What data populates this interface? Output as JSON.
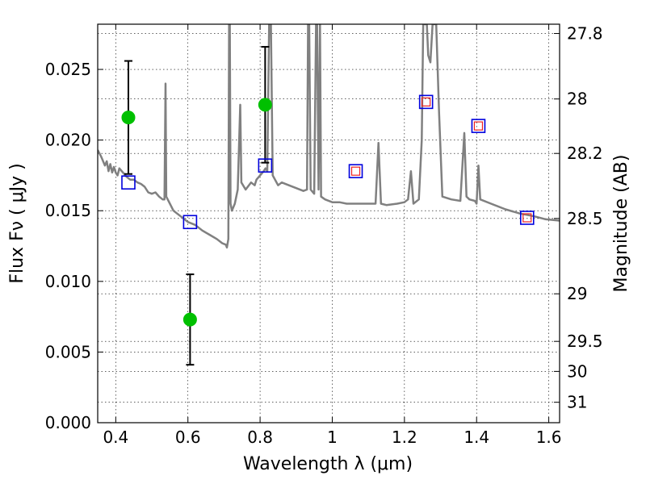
{
  "chart_data": {
    "type": "scatter",
    "xlabel": "Wavelength  λ (μm)",
    "ylabel": "Flux  Fν  ( μJy )",
    "y2label": "Magnitude (AB)",
    "xlim": [
      0.35,
      1.63
    ],
    "ylim": [
      0.0,
      0.0282
    ],
    "x_ticks": [
      {
        "value": 0.4,
        "label": "0.4"
      },
      {
        "value": 0.6,
        "label": "0.6"
      },
      {
        "value": 0.8,
        "label": "0.8"
      },
      {
        "value": 1.0,
        "label": "1"
      },
      {
        "value": 1.2,
        "label": "1.2"
      },
      {
        "value": 1.4,
        "label": "1.4"
      },
      {
        "value": 1.6,
        "label": "1.6"
      }
    ],
    "y_ticks": [
      {
        "value": 0.0,
        "label": "0.000"
      },
      {
        "value": 0.005,
        "label": "0.005"
      },
      {
        "value": 0.01,
        "label": "0.010"
      },
      {
        "value": 0.015,
        "label": "0.015"
      },
      {
        "value": 0.02,
        "label": "0.020"
      },
      {
        "value": 0.025,
        "label": "0.025"
      }
    ],
    "y2_ticks": [
      {
        "mag": 27.8,
        "label": "27.8"
      },
      {
        "mag": 28.0,
        "label": "28"
      },
      {
        "mag": 28.2,
        "label": "28.2"
      },
      {
        "mag": 28.5,
        "label": "28.5"
      },
      {
        "mag": 29.0,
        "label": "29"
      },
      {
        "mag": 29.5,
        "label": "29.5"
      },
      {
        "mag": 30.0,
        "label": "30"
      },
      {
        "mag": 31.0,
        "label": "31"
      }
    ],
    "grid": true,
    "colors": {
      "model": "#808080",
      "observed": "#00c000",
      "model_phot_outer": "#0000dd",
      "model_phot_inner": "#ee2222",
      "errorbar": "#000000"
    },
    "model_spectrum": [
      [
        0.35,
        0.0193
      ],
      [
        0.36,
        0.0188
      ],
      [
        0.37,
        0.0182
      ],
      [
        0.375,
        0.0185
      ],
      [
        0.38,
        0.0178
      ],
      [
        0.385,
        0.0183
      ],
      [
        0.39,
        0.0177
      ],
      [
        0.395,
        0.0181
      ],
      [
        0.4,
        0.0177
      ],
      [
        0.405,
        0.0175
      ],
      [
        0.41,
        0.018
      ],
      [
        0.42,
        0.0177
      ],
      [
        0.43,
        0.0174
      ],
      [
        0.44,
        0.0172
      ],
      [
        0.45,
        0.0172
      ],
      [
        0.46,
        0.017
      ],
      [
        0.47,
        0.0169
      ],
      [
        0.48,
        0.0167
      ],
      [
        0.49,
        0.0163
      ],
      [
        0.5,
        0.0162
      ],
      [
        0.51,
        0.0163
      ],
      [
        0.52,
        0.016
      ],
      [
        0.53,
        0.0158
      ],
      [
        0.535,
        0.0158
      ],
      [
        0.538,
        0.024
      ],
      [
        0.54,
        0.016
      ],
      [
        0.55,
        0.0155
      ],
      [
        0.56,
        0.015
      ],
      [
        0.58,
        0.0146
      ],
      [
        0.6,
        0.0142
      ],
      [
        0.62,
        0.014
      ],
      [
        0.64,
        0.0136
      ],
      [
        0.66,
        0.0133
      ],
      [
        0.68,
        0.013
      ],
      [
        0.695,
        0.0127
      ],
      [
        0.705,
        0.0126
      ],
      [
        0.708,
        0.0124
      ],
      [
        0.712,
        0.013
      ],
      [
        0.714,
        0.0282
      ],
      [
        0.716,
        0.0282
      ],
      [
        0.718,
        0.0155
      ],
      [
        0.722,
        0.015
      ],
      [
        0.73,
        0.0155
      ],
      [
        0.738,
        0.0165
      ],
      [
        0.745,
        0.0225
      ],
      [
        0.748,
        0.017
      ],
      [
        0.76,
        0.0165
      ],
      [
        0.775,
        0.017
      ],
      [
        0.785,
        0.0168
      ],
      [
        0.79,
        0.0172
      ],
      [
        0.8,
        0.0175
      ],
      [
        0.81,
        0.0178
      ],
      [
        0.815,
        0.018
      ],
      [
        0.82,
        0.0178
      ],
      [
        0.825,
        0.0282
      ],
      [
        0.83,
        0.0282
      ],
      [
        0.835,
        0.0175
      ],
      [
        0.85,
        0.0168
      ],
      [
        0.86,
        0.017
      ],
      [
        0.88,
        0.0168
      ],
      [
        0.9,
        0.0166
      ],
      [
        0.92,
        0.0164
      ],
      [
        0.93,
        0.0165
      ],
      [
        0.933,
        0.0282
      ],
      [
        0.936,
        0.0282
      ],
      [
        0.94,
        0.0165
      ],
      [
        0.95,
        0.0162
      ],
      [
        0.955,
        0.0282
      ],
      [
        0.958,
        0.0282
      ],
      [
        0.962,
        0.0165
      ],
      [
        0.966,
        0.0282
      ],
      [
        0.969,
        0.016
      ],
      [
        0.98,
        0.0158
      ],
      [
        1.0,
        0.0156
      ],
      [
        1.02,
        0.0156
      ],
      [
        1.04,
        0.0155
      ],
      [
        1.06,
        0.0155
      ],
      [
        1.08,
        0.0155
      ],
      [
        1.1,
        0.0155
      ],
      [
        1.12,
        0.0155
      ],
      [
        1.128,
        0.0198
      ],
      [
        1.135,
        0.0155
      ],
      [
        1.15,
        0.0154
      ],
      [
        1.18,
        0.0155
      ],
      [
        1.2,
        0.0156
      ],
      [
        1.21,
        0.0158
      ],
      [
        1.218,
        0.0178
      ],
      [
        1.225,
        0.0155
      ],
      [
        1.24,
        0.0158
      ],
      [
        1.248,
        0.02
      ],
      [
        1.252,
        0.0282
      ],
      [
        1.262,
        0.0282
      ],
      [
        1.266,
        0.026
      ],
      [
        1.272,
        0.0255
      ],
      [
        1.278,
        0.0282
      ],
      [
        1.288,
        0.0282
      ],
      [
        1.296,
        0.022
      ],
      [
        1.305,
        0.016
      ],
      [
        1.33,
        0.0158
      ],
      [
        1.355,
        0.0157
      ],
      [
        1.366,
        0.0205
      ],
      [
        1.372,
        0.016
      ],
      [
        1.38,
        0.0158
      ],
      [
        1.395,
        0.0157
      ],
      [
        1.4,
        0.0155
      ],
      [
        1.405,
        0.0182
      ],
      [
        1.41,
        0.0158
      ],
      [
        1.44,
        0.0155
      ],
      [
        1.48,
        0.0151
      ],
      [
        1.52,
        0.0148
      ],
      [
        1.56,
        0.0146
      ],
      [
        1.59,
        0.0144
      ],
      [
        1.63,
        0.0143
      ]
    ],
    "observed_points": [
      {
        "x": 0.435,
        "y": 0.0216,
        "yerr": 0.004
      },
      {
        "x": 0.606,
        "y": 0.0073,
        "yerr": 0.0032
      },
      {
        "x": 0.814,
        "y": 0.0225,
        "yerr": 0.0041
      }
    ],
    "model_photometry": [
      {
        "x": 0.435,
        "y": 0.017,
        "inner": false
      },
      {
        "x": 0.606,
        "y": 0.0142,
        "inner": false
      },
      {
        "x": 0.814,
        "y": 0.0182,
        "inner": false
      },
      {
        "x": 1.065,
        "y": 0.0178,
        "inner": true
      },
      {
        "x": 1.26,
        "y": 0.0227,
        "inner": true
      },
      {
        "x": 1.405,
        "y": 0.021,
        "inner": true
      },
      {
        "x": 1.54,
        "y": 0.0145,
        "inner": true
      }
    ]
  }
}
